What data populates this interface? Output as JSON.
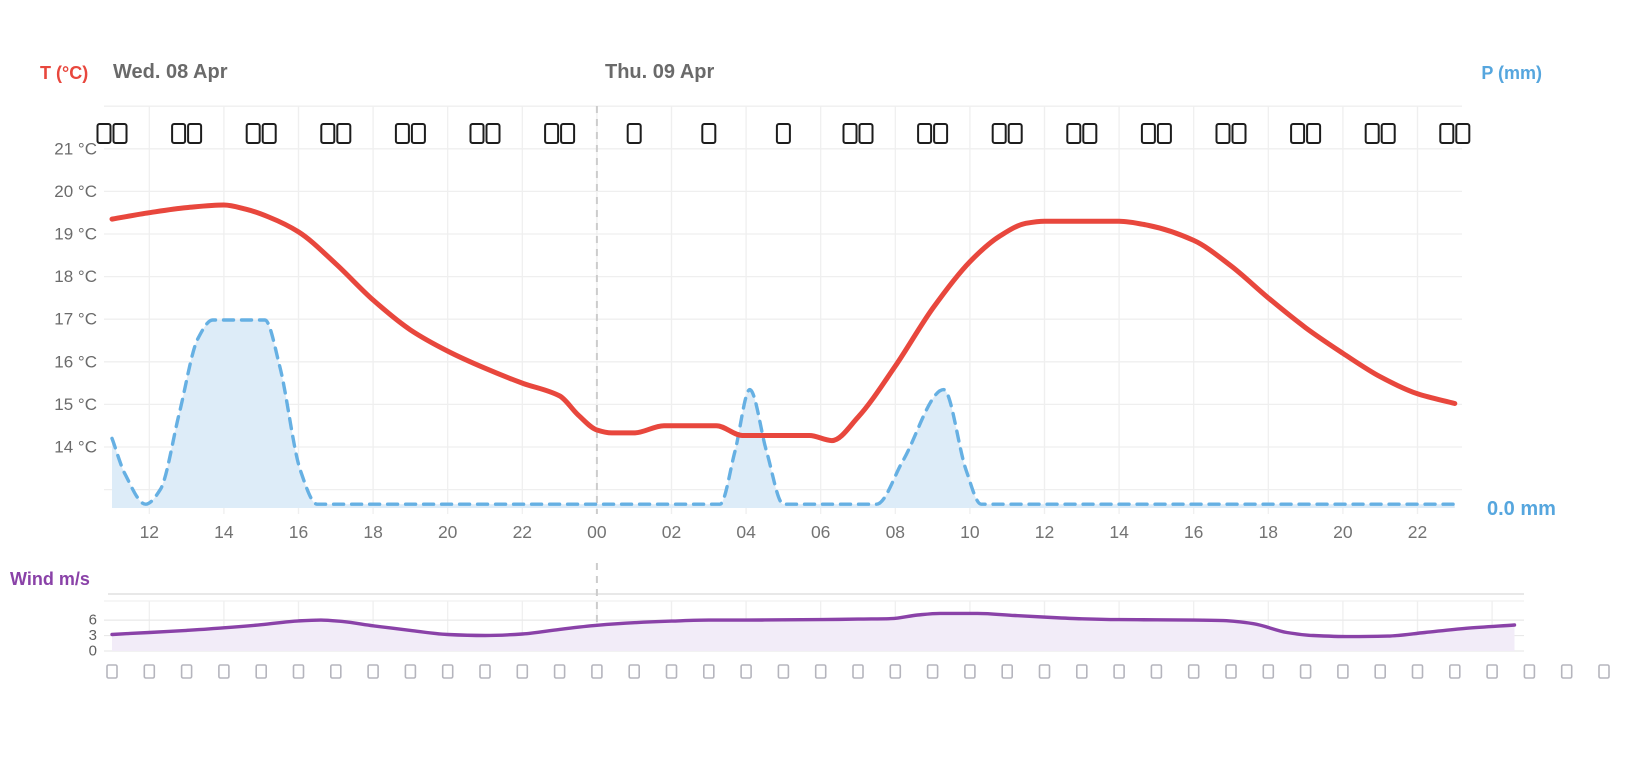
{
  "header": {
    "left_axis_label": "T (°C)",
    "day_labels": [
      "Wed. 08 Apr",
      "Thu. 09 Apr"
    ],
    "right_axis_label": "P (mm)"
  },
  "wind_section": {
    "label": "Wind m/s",
    "ticks": [
      {
        "value": 6,
        "label": "6"
      },
      {
        "value": 3,
        "label": "3"
      },
      {
        "value": 0,
        "label": "0"
      }
    ]
  },
  "temp_axis": {
    "ticks": [
      {
        "value": 21,
        "label": "21 °C"
      },
      {
        "value": 20,
        "label": "20 °C"
      },
      {
        "value": 19,
        "label": "19 °C"
      },
      {
        "value": 18,
        "label": "18 °C"
      },
      {
        "value": 17,
        "label": "17 °C"
      },
      {
        "value": 16,
        "label": "16 °C"
      },
      {
        "value": 15,
        "label": "15 °C"
      },
      {
        "value": 14,
        "label": "14 °C"
      }
    ]
  },
  "x_axis": {
    "note": "hour 24 = Thu 00:00; dashed divider at midnight",
    "ticks": [
      {
        "hour": 12,
        "label": "12"
      },
      {
        "hour": 14,
        "label": "14"
      },
      {
        "hour": 16,
        "label": "16"
      },
      {
        "hour": 18,
        "label": "18"
      },
      {
        "hour": 20,
        "label": "20"
      },
      {
        "hour": 22,
        "label": "22"
      },
      {
        "hour": 24,
        "label": "00"
      },
      {
        "hour": 26,
        "label": "02"
      },
      {
        "hour": 28,
        "label": "04"
      },
      {
        "hour": 30,
        "label": "06"
      },
      {
        "hour": 32,
        "label": "08"
      },
      {
        "hour": 34,
        "label": "10"
      },
      {
        "hour": 36,
        "label": "12"
      },
      {
        "hour": 38,
        "label": "14"
      },
      {
        "hour": 40,
        "label": "16"
      },
      {
        "hour": 42,
        "label": "18"
      },
      {
        "hour": 44,
        "label": "20"
      },
      {
        "hour": 46,
        "label": "22"
      }
    ],
    "midnight_hour": 24
  },
  "precip_total_label": "0.0 mm",
  "colors": {
    "temperature": "#e8473d",
    "precipitation_line": "#66b0e3",
    "precipitation_fill": "#ddecf8",
    "wind_line": "#8a42a8",
    "wind_fill": "#f2ecf8",
    "gridline": "#efefef",
    "midnight_line": "#cccccc",
    "separator": "#e8e8e8",
    "tick_label": "#737373",
    "temp_tick_label": "#6b6b6b",
    "wind_tick_label": "#5f5f5f",
    "weather_icon_border": "#1d1d1d",
    "wind_icon_border": "#b5b5bd"
  },
  "chart_data": [
    {
      "type": "line",
      "name": "Temperature",
      "unit": "°C",
      "x_unit": "hour (11 = Wed 11:00, 24+ = Thu)",
      "ylim": [
        12.5,
        22
      ],
      "points": [
        [
          11,
          19.35
        ],
        [
          12,
          19.5
        ],
        [
          13,
          19.62
        ],
        [
          14,
          19.68
        ],
        [
          14.6,
          19.58
        ],
        [
          15.2,
          19.4
        ],
        [
          16,
          19.05
        ],
        [
          17,
          18.3
        ],
        [
          18,
          17.45
        ],
        [
          19,
          16.75
        ],
        [
          20,
          16.25
        ],
        [
          21,
          15.85
        ],
        [
          22,
          15.5
        ],
        [
          23,
          15.2
        ],
        [
          23.5,
          14.75
        ],
        [
          24,
          14.4
        ],
        [
          24.4,
          14.33
        ],
        [
          25,
          14.33
        ],
        [
          25.8,
          14.5
        ],
        [
          27.2,
          14.5
        ],
        [
          27.9,
          14.27
        ],
        [
          29.7,
          14.27
        ],
        [
          30.3,
          14.15
        ],
        [
          31,
          14.7
        ],
        [
          32,
          15.9
        ],
        [
          33,
          17.25
        ],
        [
          34,
          18.35
        ],
        [
          34.8,
          18.95
        ],
        [
          35.5,
          19.25
        ],
        [
          36,
          19.3
        ],
        [
          38,
          19.3
        ],
        [
          38.8,
          19.2
        ],
        [
          40,
          18.85
        ],
        [
          41,
          18.25
        ],
        [
          42,
          17.5
        ],
        [
          43,
          16.8
        ],
        [
          44,
          16.2
        ],
        [
          45,
          15.65
        ],
        [
          46,
          15.25
        ],
        [
          47,
          15.02
        ]
      ]
    },
    {
      "type": "area",
      "name": "Precipitation",
      "unit": "relative height (tallest spike = 1.0); right axis shows 0.0 mm",
      "style": "dashed",
      "points": [
        [
          11,
          0.37
        ],
        [
          11.35,
          0.18
        ],
        [
          11.9,
          0.02
        ],
        [
          12.3,
          0.1
        ],
        [
          12.8,
          0.5
        ],
        [
          13.3,
          0.9
        ],
        [
          13.7,
          1.0
        ],
        [
          15.1,
          1.0
        ],
        [
          15.5,
          0.75
        ],
        [
          16.05,
          0.2
        ],
        [
          16.5,
          0.02
        ],
        [
          20,
          0.02
        ],
        [
          24,
          0.02
        ],
        [
          27.3,
          0.02
        ],
        [
          27.7,
          0.3
        ],
        [
          28.1,
          0.63
        ],
        [
          28.55,
          0.3
        ],
        [
          29,
          0.02
        ],
        [
          30,
          0.02
        ],
        [
          31.5,
          0.02
        ],
        [
          32.2,
          0.25
        ],
        [
          33.3,
          0.63
        ],
        [
          33.9,
          0.2
        ],
        [
          34.3,
          0.02
        ],
        [
          38,
          0.02
        ],
        [
          42,
          0.02
        ],
        [
          47,
          0.02
        ]
      ]
    },
    {
      "type": "area",
      "name": "Wind",
      "unit": "m/s",
      "yticks": [
        0,
        3,
        6
      ],
      "points": [
        [
          11,
          3.2
        ],
        [
          12,
          3.6
        ],
        [
          13,
          4.0
        ],
        [
          14,
          4.5
        ],
        [
          15,
          5.1
        ],
        [
          16,
          5.85
        ],
        [
          16.6,
          6.0
        ],
        [
          17.2,
          5.7
        ],
        [
          18,
          4.9
        ],
        [
          19,
          4.0
        ],
        [
          20,
          3.2
        ],
        [
          21,
          3.0
        ],
        [
          22,
          3.3
        ],
        [
          23,
          4.2
        ],
        [
          24,
          5.0
        ],
        [
          25,
          5.5
        ],
        [
          26,
          5.8
        ],
        [
          27,
          6.0
        ],
        [
          28,
          6.0
        ],
        [
          29,
          6.05
        ],
        [
          30,
          6.1
        ],
        [
          31,
          6.2
        ],
        [
          31.9,
          6.3
        ],
        [
          32.6,
          7.0
        ],
        [
          33.2,
          7.3
        ],
        [
          34.2,
          7.3
        ],
        [
          35.2,
          6.9
        ],
        [
          36.2,
          6.5
        ],
        [
          37,
          6.25
        ],
        [
          38,
          6.1
        ],
        [
          39,
          6.05
        ],
        [
          40,
          6.0
        ],
        [
          40.8,
          5.9
        ],
        [
          41.6,
          5.3
        ],
        [
          42.5,
          3.6
        ],
        [
          43.2,
          3.0
        ],
        [
          44.2,
          2.8
        ],
        [
          45.2,
          2.9
        ],
        [
          46.2,
          3.6
        ],
        [
          47.3,
          4.4
        ],
        [
          48.6,
          5.05
        ]
      ]
    }
  ],
  "weather_icons": {
    "description": "unrendered weather glyph placeholder boxes above chart, every 2 hours",
    "slots": [
      {
        "hour": 11,
        "boxes": 2
      },
      {
        "hour": 13,
        "boxes": 2
      },
      {
        "hour": 15,
        "boxes": 2
      },
      {
        "hour": 17,
        "boxes": 2
      },
      {
        "hour": 19,
        "boxes": 2
      },
      {
        "hour": 21,
        "boxes": 2
      },
      {
        "hour": 23,
        "boxes": 2
      },
      {
        "hour": 25,
        "boxes": 1
      },
      {
        "hour": 27,
        "boxes": 1
      },
      {
        "hour": 29,
        "boxes": 1
      },
      {
        "hour": 31,
        "boxes": 2
      },
      {
        "hour": 33,
        "boxes": 2
      },
      {
        "hour": 35,
        "boxes": 2
      },
      {
        "hour": 37,
        "boxes": 2
      },
      {
        "hour": 39,
        "boxes": 2
      },
      {
        "hour": 41,
        "boxes": 2
      },
      {
        "hour": 43,
        "boxes": 2
      },
      {
        "hour": 45,
        "boxes": 2
      },
      {
        "hour": 47,
        "boxes": 2
      }
    ]
  },
  "wind_direction_icons": {
    "description": "unrendered wind-direction glyph placeholder boxes, hourly row below wind panel",
    "start_hour": 11,
    "interval_hours": 1,
    "count": 41
  }
}
